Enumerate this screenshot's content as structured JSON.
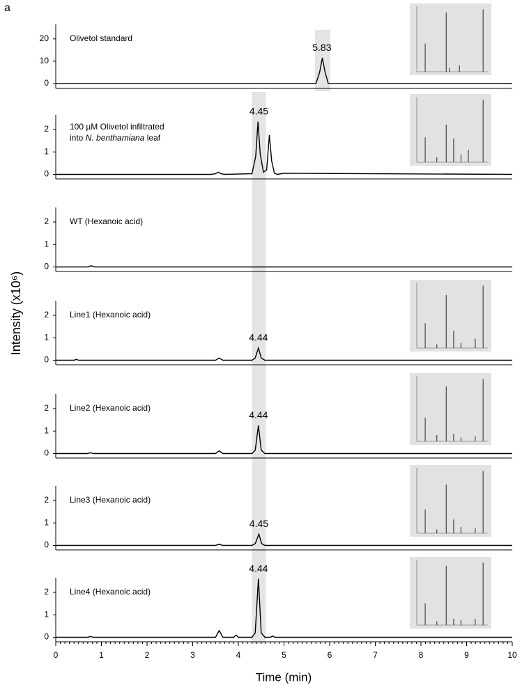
{
  "panel_label": "a",
  "y_label": "Intensity (x10⁶)",
  "x_label": "Time (min)",
  "xlim": [
    0,
    10
  ],
  "xticks": [
    0,
    1,
    2,
    3,
    4,
    5,
    6,
    7,
    8,
    9,
    10
  ],
  "chart_data": [
    {
      "type": "line",
      "title": "Olivetol standard",
      "color": "#000000",
      "x": [
        0,
        5.7,
        5.78,
        5.84,
        5.9,
        5.97,
        10
      ],
      "values": [
        0,
        0,
        5,
        11.5,
        5,
        0,
        0
      ],
      "ylim": [
        -2.2,
        26.5
      ],
      "yticks": [
        0,
        10,
        20
      ],
      "peak_rt": 5.83,
      "inset": {
        "type": "bar",
        "color": "#444444",
        "x": [
          71,
          111,
          117,
          136,
          181
        ],
        "values": [
          45,
          95,
          6,
          10,
          100
        ],
        "xlim": [
          55,
          190
        ],
        "ylim": [
          0,
          105
        ]
      }
    },
    {
      "type": "line",
      "title": [
        [
          {
            "text": "100 µM Olivetol infiltrated"
          }
        ],
        [
          {
            "text": "into "
          },
          {
            "text": "N. benthamiana",
            "italic": true
          },
          {
            "text": " leaf"
          }
        ]
      ],
      "color": "#000000",
      "x": [
        0,
        3.4,
        3.5,
        3.56,
        3.62,
        3.7,
        4.3,
        4.38,
        4.43,
        4.48,
        4.55,
        4.62,
        4.68,
        4.73,
        4.79,
        4.86,
        5.0,
        10
      ],
      "values": [
        0,
        0,
        0.03,
        0.1,
        0.03,
        0,
        0.03,
        0.8,
        2.35,
        0.9,
        0.1,
        0.2,
        1.75,
        0.6,
        0.05,
        0,
        0.05,
        0
      ],
      "ylim": [
        -0.2,
        2.65
      ],
      "yticks": [
        0,
        1,
        2
      ],
      "peak_rt": 4.45,
      "inset": {
        "type": "bar",
        "color": "#444444",
        "x": [
          71,
          93,
          111,
          125,
          139,
          153,
          181
        ],
        "values": [
          40,
          8,
          60,
          38,
          12,
          20,
          100
        ],
        "xlim": [
          55,
          190
        ],
        "ylim": [
          0,
          105
        ]
      }
    },
    {
      "type": "line",
      "title": "WT (Hexanoic acid)",
      "color": "#000000",
      "x": [
        0,
        0.7,
        0.78,
        0.86,
        10
      ],
      "values": [
        0,
        0,
        0.05,
        0,
        0
      ],
      "ylim": [
        -0.2,
        2.65
      ],
      "yticks": [
        0,
        1,
        2
      ]
    },
    {
      "type": "line",
      "title": "Line1 (Hexanoic acid)",
      "color": "#000000",
      "x": [
        0,
        0.4,
        0.45,
        0.5,
        3.5,
        3.58,
        3.66,
        4.3,
        4.37,
        4.44,
        4.5,
        4.58,
        10
      ],
      "values": [
        0,
        0,
        0.04,
        0,
        0,
        0.1,
        0,
        0,
        0.1,
        0.55,
        0.1,
        0,
        0
      ],
      "ylim": [
        -0.2,
        2.65
      ],
      "yticks": [
        0,
        1,
        2
      ],
      "peak_rt": 4.44,
      "inset": {
        "type": "bar",
        "color": "#444444",
        "x": [
          71,
          93,
          111,
          125,
          139,
          166,
          181
        ],
        "values": [
          40,
          6,
          85,
          28,
          8,
          15,
          100
        ],
        "xlim": [
          55,
          190
        ],
        "ylim": [
          0,
          105
        ]
      }
    },
    {
      "type": "line",
      "title": "Line2 (Hexanoic acid)",
      "color": "#000000",
      "x": [
        0,
        0.7,
        0.76,
        0.82,
        3.5,
        3.58,
        3.66,
        4.3,
        4.37,
        4.44,
        4.5,
        4.58,
        10
      ],
      "values": [
        0,
        0,
        0.04,
        0,
        0,
        0.12,
        0,
        0,
        0.15,
        1.25,
        0.15,
        0,
        0
      ],
      "ylim": [
        -0.2,
        2.65
      ],
      "yticks": [
        0,
        1,
        2
      ],
      "peak_rt": 4.44,
      "inset": {
        "type": "bar",
        "color": "#444444",
        "x": [
          71,
          93,
          111,
          125,
          139,
          166,
          181
        ],
        "values": [
          38,
          10,
          88,
          12,
          6,
          8,
          100
        ],
        "xlim": [
          55,
          190
        ],
        "ylim": [
          0,
          105
        ]
      }
    },
    {
      "type": "line",
      "title": "Line3 (Hexanoic acid)",
      "color": "#000000",
      "x": [
        0,
        3.5,
        3.58,
        3.66,
        4.3,
        4.37,
        4.45,
        4.51,
        4.58,
        10
      ],
      "values": [
        0,
        0,
        0.05,
        0,
        0,
        0.08,
        0.5,
        0.08,
        0,
        0
      ],
      "ylim": [
        -0.2,
        2.65
      ],
      "yticks": [
        0,
        1,
        2
      ],
      "peak_rt": 4.45,
      "inset": {
        "type": "bar",
        "color": "#444444",
        "x": [
          71,
          93,
          111,
          125,
          139,
          166,
          181
        ],
        "values": [
          38,
          6,
          78,
          22,
          10,
          8,
          100
        ],
        "xlim": [
          55,
          190
        ],
        "ylim": [
          0,
          105
        ]
      }
    },
    {
      "type": "line",
      "title": "Line4 (Hexanoic acid)",
      "color": "#000000",
      "x": [
        0,
        0.7,
        0.76,
        0.82,
        3.5,
        3.58,
        3.66,
        3.9,
        3.95,
        4.0,
        4.3,
        4.37,
        4.44,
        4.5,
        4.58,
        4.7,
        4.75,
        4.8,
        10
      ],
      "values": [
        0,
        0,
        0.04,
        0,
        0,
        0.3,
        0,
        0,
        0.1,
        0,
        0,
        0.2,
        2.6,
        0.2,
        0,
        0,
        0.06,
        0,
        0
      ],
      "ylim": [
        -0.2,
        2.65
      ],
      "yticks": [
        0,
        1,
        2
      ],
      "peak_rt": 4.44,
      "inset": {
        "type": "bar",
        "color": "#444444",
        "x": [
          71,
          93,
          111,
          125,
          139,
          166,
          181
        ],
        "values": [
          35,
          6,
          95,
          10,
          8,
          10,
          100
        ],
        "xlim": [
          55,
          190
        ],
        "ylim": [
          0,
          105
        ]
      }
    }
  ]
}
